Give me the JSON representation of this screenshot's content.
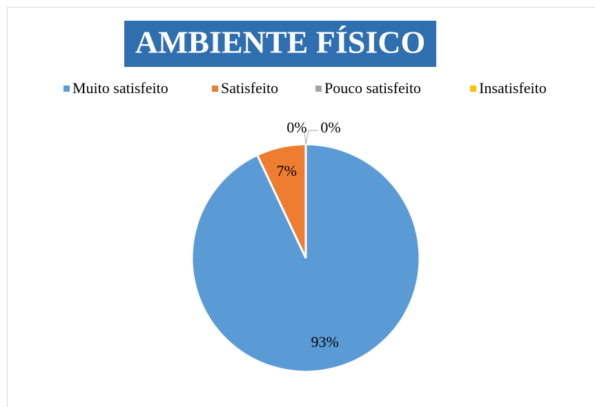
{
  "chart_data": {
    "type": "pie",
    "title": "AMBIENTE FÍSICO",
    "categories": [
      "Muito satisfeito",
      "Satisfeito",
      "Pouco satisfeito",
      "Insatisfeito"
    ],
    "values": [
      93,
      7,
      0,
      0
    ],
    "value_labels": [
      "93%",
      "7%",
      "0%",
      "0%"
    ],
    "colors": [
      "#5b9bd5",
      "#ed7d31",
      "#a5a5a5",
      "#ffc000"
    ],
    "legend": "top"
  }
}
